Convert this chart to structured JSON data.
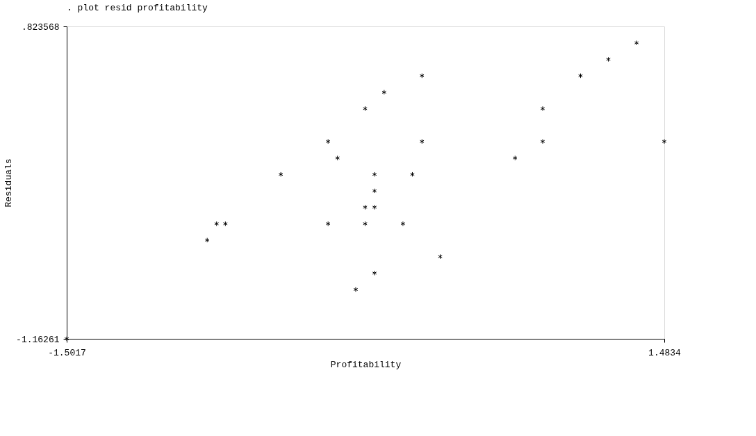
{
  "chart_data": {
    "type": "scatter",
    "title": ". plot resid profitability",
    "xlabel": "Profitability",
    "ylabel": "Residuals",
    "x": [
      1.345,
      1.204,
      0.273,
      1.065,
      0.084,
      -0.011,
      0.876,
      -0.196,
      0.273,
      0.876,
      1.4834,
      -0.149,
      0.738,
      -0.432,
      0.036,
      0.225,
      0.036,
      -0.011,
      0.036,
      -0.753,
      -0.709,
      -0.196,
      -0.011,
      0.178,
      -0.8,
      0.364,
      0.036,
      -0.058,
      -1.5017
    ],
    "series": [
      {
        "color": "#000000",
        "values": [
          0.719,
          0.614,
          0.51,
          0.51,
          0.405,
          0.301,
          0.301,
          0.092,
          0.092,
          0.092,
          0.092,
          -0.013,
          -0.013,
          -0.117,
          -0.117,
          -0.117,
          -0.222,
          -0.326,
          -0.326,
          -0.431,
          -0.431,
          -0.431,
          -0.431,
          -0.431,
          -0.535,
          -0.64,
          -0.745,
          -0.849,
          -1.16261
        ]
      }
    ],
    "xlim": [
      -1.5017,
      1.4834
    ],
    "ylim": [
      -1.16261,
      0.823568
    ],
    "xticks": [
      -1.5017,
      1.4834
    ],
    "yticks": [
      {
        "value": 0.823568,
        "label": ".823568"
      },
      {
        "value": -1.16261,
        "label": "-1.16261"
      }
    ],
    "marker": "cross",
    "grid": false,
    "legend": false
  }
}
